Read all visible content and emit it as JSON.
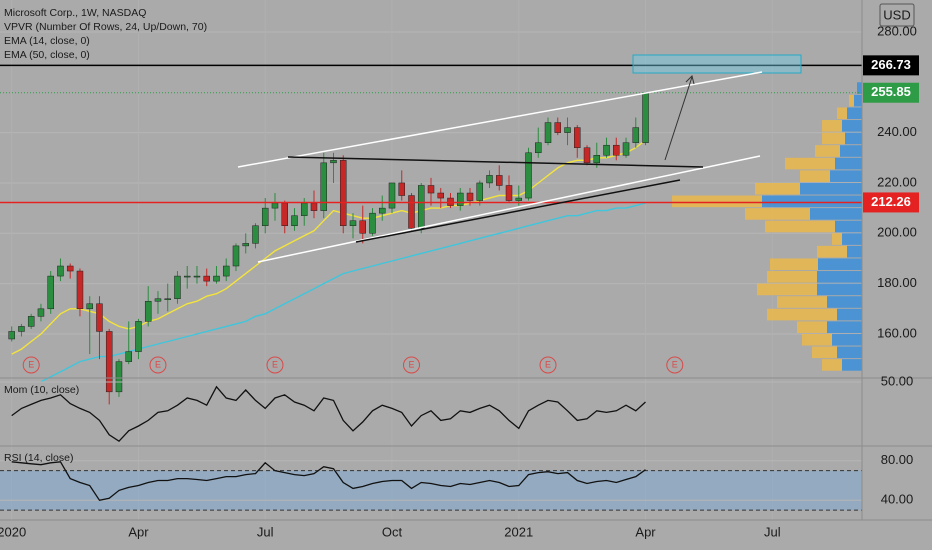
{
  "chart_data": {
    "type": "candlestick",
    "title": "Microsoft Corp., 1W, NASDAQ",
    "currency": "USD",
    "up_color": "#2a8d3f",
    "down_color": "#c62828",
    "xlim": [
      -1.2,
      87.2
    ],
    "xticks": [
      {
        "value": 0,
        "label": "2020"
      },
      {
        "value": 13,
        "label": "Apr"
      },
      {
        "value": 26,
        "label": "Jul"
      },
      {
        "value": 39,
        "label": "Oct"
      },
      {
        "value": 52,
        "label": "2021"
      },
      {
        "value": 65,
        "label": "Apr"
      },
      {
        "value": 78,
        "label": "Jul"
      }
    ],
    "ylim": [
      142.5,
      292.7
    ],
    "yticks": [
      {
        "value": 160,
        "label": "160.00"
      },
      {
        "value": 180,
        "label": "180.00"
      },
      {
        "value": 200,
        "label": "200.00"
      },
      {
        "value": 220,
        "label": "220.00"
      },
      {
        "value": 240,
        "label": "240.00"
      },
      {
        "value": 280,
        "label": "280.00"
      }
    ],
    "grid": true,
    "ohlc": [
      [
        158,
        163,
        157,
        161
      ],
      [
        161,
        164,
        159,
        163
      ],
      [
        163,
        168,
        162,
        167
      ],
      [
        167,
        172,
        165,
        170
      ],
      [
        170,
        185,
        168,
        183
      ],
      [
        183,
        190,
        181,
        187
      ],
      [
        187,
        188,
        182,
        185
      ],
      [
        185,
        186,
        167,
        170
      ],
      [
        170,
        175,
        152,
        172
      ],
      [
        172,
        175,
        150,
        161
      ],
      [
        161,
        162,
        132,
        137
      ],
      [
        137,
        150,
        135,
        149
      ],
      [
        149,
        165,
        148,
        153
      ],
      [
        153,
        166,
        150,
        165
      ],
      [
        165,
        179,
        163,
        173
      ],
      [
        173,
        177,
        168,
        174
      ],
      [
        174,
        180,
        169,
        174
      ],
      [
        174,
        185,
        172,
        183
      ],
      [
        183,
        187,
        178,
        183
      ],
      [
        183,
        187,
        180,
        183
      ],
      [
        183,
        186,
        179,
        181
      ],
      [
        181,
        187,
        180,
        183
      ],
      [
        183,
        190,
        181,
        187
      ],
      [
        187,
        196,
        185,
        195
      ],
      [
        195,
        200,
        192,
        196
      ],
      [
        196,
        204,
        194,
        203
      ],
      [
        203,
        214,
        200,
        210
      ],
      [
        210,
        216,
        205,
        212
      ],
      [
        212,
        213,
        200,
        203
      ],
      [
        203,
        210,
        201,
        207
      ],
      [
        207,
        214,
        203,
        212
      ],
      [
        212,
        217,
        206,
        209
      ],
      [
        209,
        232,
        206,
        228
      ],
      [
        228,
        232,
        220,
        229
      ],
      [
        229,
        231,
        200,
        203
      ],
      [
        203,
        208,
        198,
        205
      ],
      [
        205,
        211,
        196,
        200
      ],
      [
        200,
        210,
        199,
        208
      ],
      [
        208,
        215,
        205,
        210
      ],
      [
        210,
        220,
        208,
        220
      ],
      [
        220,
        225,
        213,
        215
      ],
      [
        215,
        216,
        201,
        202
      ],
      [
        202,
        220,
        200,
        219
      ],
      [
        219,
        222,
        211,
        216
      ],
      [
        216,
        218,
        210,
        214
      ],
      [
        214,
        216,
        210,
        211
      ],
      [
        211,
        218,
        209,
        216
      ],
      [
        216,
        218,
        211,
        213
      ],
      [
        213,
        221,
        211,
        220
      ],
      [
        220,
        225,
        218,
        223
      ],
      [
        223,
        227,
        217,
        219
      ],
      [
        219,
        223,
        212,
        213
      ],
      [
        213,
        219,
        211,
        214
      ],
      [
        214,
        234,
        213,
        232
      ],
      [
        232,
        242,
        230,
        236
      ],
      [
        236,
        246,
        235,
        244
      ],
      [
        244,
        246,
        239,
        240
      ],
      [
        240,
        246,
        235,
        242
      ],
      [
        242,
        243,
        230,
        234
      ],
      [
        234,
        235,
        227,
        228
      ],
      [
        228,
        236,
        226,
        231
      ],
      [
        231,
        238,
        230,
        235
      ],
      [
        235,
        238,
        229,
        231
      ],
      [
        231,
        238,
        230,
        236
      ],
      [
        236,
        246,
        234,
        242
      ],
      [
        236,
        256,
        235,
        255.85
      ]
    ],
    "series": [
      {
        "name": "EMA (14, close, 0)",
        "color": "#f3e33c",
        "values": [
          152,
          154,
          157,
          160,
          164,
          168,
          170,
          170,
          169,
          168,
          165,
          163,
          162,
          163,
          165,
          166,
          168,
          170,
          172,
          173,
          175,
          176,
          178,
          181,
          184,
          187,
          190,
          193,
          195,
          197,
          199,
          201,
          205,
          209,
          208,
          207,
          206,
          206,
          207,
          208,
          209,
          208,
          209,
          210,
          210,
          211,
          211,
          212,
          213,
          214,
          215,
          215,
          215,
          217,
          220,
          223,
          226,
          228,
          229,
          229,
          230,
          230,
          231,
          232,
          234,
          237
        ]
      },
      {
        "name": "EMA (50, close, 0)",
        "color": "#3fc6dc",
        "values": [
          null,
          null,
          null,
          141,
          143,
          145,
          147,
          149,
          150,
          151,
          151,
          152,
          153,
          154,
          155,
          156,
          157,
          158,
          159,
          160,
          161,
          162,
          163,
          164,
          165,
          167,
          168,
          170,
          172,
          174,
          176,
          178,
          180,
          182,
          184,
          185,
          186,
          187,
          188,
          189,
          190,
          191,
          192,
          193,
          194,
          195,
          196,
          197,
          198,
          199,
          200,
          201,
          202,
          203,
          204,
          205,
          206,
          207,
          207,
          208,
          209,
          209,
          210,
          210,
          211,
          212
        ]
      }
    ],
    "vpvr": {
      "name": "VPVR (Number Of Rows, 24, Up/Down, 70)",
      "row_size": 5,
      "up_color": "#3b8fdb",
      "down_color": "#ebb94a",
      "rows": [
        145,
        150,
        155,
        160,
        165,
        170,
        175,
        180,
        185,
        190,
        195,
        200,
        205,
        210,
        215,
        220,
        225,
        230,
        235,
        240,
        245,
        250,
        255
      ],
      "up": [
        20,
        25,
        30,
        35,
        25,
        35,
        45,
        45,
        44,
        15,
        20,
        27,
        52,
        100,
        62,
        32,
        27,
        22,
        17,
        20,
        15,
        8,
        5
      ],
      "down": [
        20,
        25,
        30,
        30,
        70,
        50,
        60,
        50,
        48,
        30,
        10,
        70,
        65,
        90,
        45,
        30,
        50,
        25,
        23,
        20,
        10,
        5,
        0
      ]
    },
    "levels": [
      {
        "value": 266.73,
        "color": "#000000",
        "text_color": "#ffffff"
      },
      {
        "value": 255.85,
        "color": "#2e9c47",
        "text_color": "#ffffff"
      },
      {
        "value": 212.26,
        "color": "#e52222",
        "text_color": "#ffffff"
      }
    ],
    "earnings": [
      {
        "index": 2,
        "label": "E"
      },
      {
        "index": 15,
        "label": "E"
      },
      {
        "index": 27,
        "label": "E"
      },
      {
        "index": 41,
        "label": "E"
      },
      {
        "index": 55,
        "label": "E"
      },
      {
        "index": 68,
        "label": "E"
      }
    ],
    "panes": [
      {
        "name": "Mom (10, close)",
        "color": "#111111",
        "ylim": [
          -30,
          55
        ],
        "yticks": [
          {
            "value": 50,
            "label": "50.00"
          }
        ],
        "values": [
          8,
          17,
          22,
          27,
          30,
          34,
          23,
          17,
          12,
          2,
          -16,
          -24,
          -11,
          -5,
          2,
          12,
          14,
          21,
          30,
          27,
          21,
          44,
          30,
          27,
          40,
          27,
          17,
          30,
          34,
          25,
          21,
          14,
          30,
          27,
          2,
          -11,
          0,
          14,
          21,
          17,
          12,
          -5,
          8,
          14,
          2,
          4,
          14,
          12,
          17,
          21,
          14,
          2,
          -8,
          14,
          21,
          27,
          25,
          14,
          2,
          4,
          14,
          12,
          14,
          21,
          14,
          25
        ]
      },
      {
        "name": "RSI (14, close)",
        "color": "#111111",
        "ylim": [
          20,
          95
        ],
        "yticks": [
          {
            "value": 80,
            "label": "80.00"
          },
          {
            "value": 40,
            "label": "40.00"
          }
        ],
        "bands": [
          30,
          70
        ],
        "values": [
          79,
          78,
          77,
          76,
          78,
          79,
          62,
          58,
          55,
          40,
          42,
          50,
          53,
          55,
          58,
          60,
          60,
          62,
          62,
          61,
          60,
          62,
          64,
          64,
          66,
          67,
          78,
          70,
          68,
          66,
          65,
          67,
          74,
          72,
          58,
          52,
          54,
          57,
          59,
          60,
          60,
          52,
          58,
          57,
          55,
          54,
          57,
          56,
          58,
          60,
          58,
          54,
          55,
          66,
          68,
          69,
          67,
          68,
          60,
          57,
          59,
          60,
          58,
          61,
          64,
          71
        ]
      }
    ]
  }
}
